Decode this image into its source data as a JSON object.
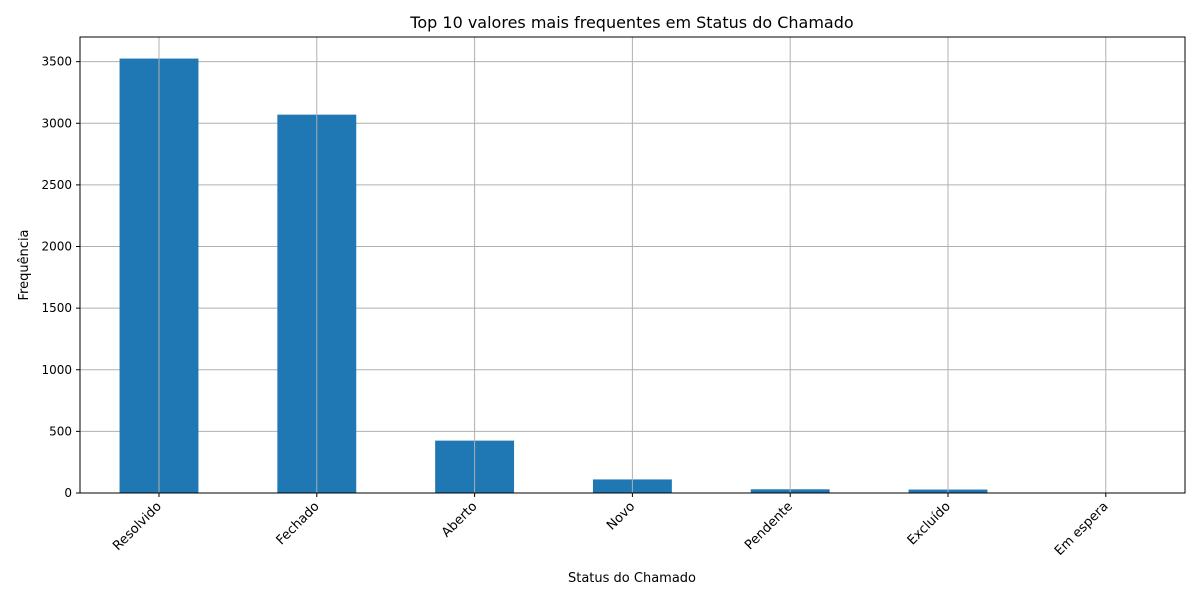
{
  "chart_data": {
    "type": "bar",
    "title": "Top 10 valores mais frequentes em Status do Chamado",
    "xlabel": "Status do Chamado",
    "ylabel": "Frequência",
    "categories": [
      "Resolvido",
      "Fechado",
      "Aberto",
      "Novo",
      "Pendente",
      "Excluído",
      "Em espera"
    ],
    "values": [
      3525,
      3070,
      425,
      110,
      30,
      28,
      2
    ],
    "ylim": [
      0,
      3700
    ],
    "yticks": [
      0,
      500,
      1000,
      1500,
      2000,
      2500,
      3000,
      3500
    ],
    "ytick_labels": [
      "0",
      "500",
      "1000",
      "1500",
      "2000",
      "2500",
      "3000",
      "3500"
    ],
    "grid": true,
    "bar_color": "#1f77b4",
    "grid_color": "#b0b0b0"
  }
}
